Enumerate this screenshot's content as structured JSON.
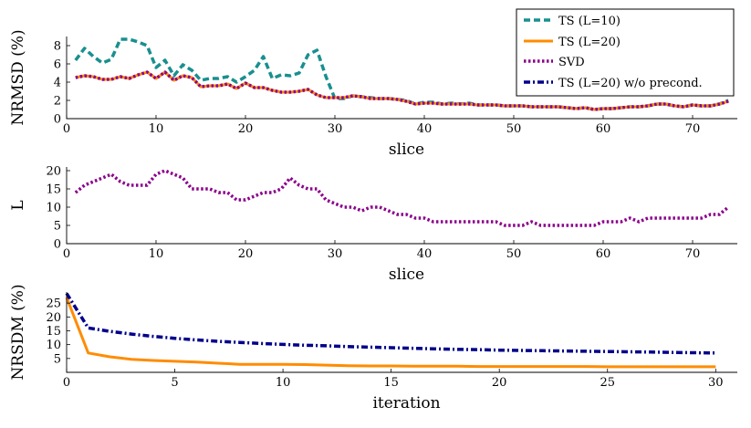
{
  "chart_data": [
    {
      "type": "line",
      "ylabel": "NRMSD (%)",
      "xlabel": "slice",
      "xlim": [
        0,
        75
      ],
      "ylim": [
        0,
        9
      ],
      "xticks": [
        0,
        10,
        20,
        30,
        40,
        50,
        60,
        70
      ],
      "yticks": [
        0,
        2,
        4,
        6,
        8
      ],
      "legend": {
        "placement": "top-right"
      },
      "series": [
        {
          "name": "TS (L=10)",
          "color": "#1a8f8f",
          "dash": "dashed",
          "x": [
            1,
            2,
            3,
            4,
            5,
            6,
            7,
            8,
            9,
            10,
            11,
            12,
            13,
            14,
            15,
            16,
            17,
            18,
            19,
            20,
            21,
            22,
            23,
            24,
            25,
            26,
            27,
            28,
            29,
            30,
            31,
            32,
            33,
            34,
            35,
            36,
            37,
            38,
            39,
            40,
            41,
            42,
            43,
            44,
            45,
            46,
            47,
            48,
            49,
            50,
            51,
            52,
            53,
            54,
            55,
            56,
            57,
            58,
            59,
            60,
            61,
            62,
            63,
            64,
            65,
            66,
            67,
            68,
            69,
            70,
            71,
            72,
            73,
            74
          ],
          "values": [
            6.4,
            7.7,
            6.8,
            6.1,
            6.5,
            8.7,
            8.7,
            8.4,
            8.0,
            5.6,
            6.4,
            4.7,
            5.9,
            5.3,
            4.2,
            4.4,
            4.4,
            4.6,
            4.0,
            4.6,
            5.3,
            6.8,
            4.4,
            4.8,
            4.7,
            5.0,
            7.0,
            7.5,
            4.6,
            2.2,
            2.2,
            2.5,
            2.4,
            2.3,
            2.2,
            2.2,
            2.1,
            2.0,
            1.6,
            1.8,
            1.8,
            1.6,
            1.7,
            1.6,
            1.7,
            1.5,
            1.5,
            1.5,
            1.4,
            1.4,
            1.4,
            1.3,
            1.3,
            1.3,
            1.3,
            1.2,
            1.1,
            1.2,
            1.0,
            1.1,
            1.1,
            1.2,
            1.3,
            1.3,
            1.4,
            1.6,
            1.6,
            1.4,
            1.3,
            1.5,
            1.4,
            1.4,
            1.6,
            2.0
          ]
        },
        {
          "name": "TS (L=20)",
          "color": "#ff8c00",
          "dash": "solid",
          "x": [
            1,
            2,
            3,
            4,
            5,
            6,
            7,
            8,
            9,
            10,
            11,
            12,
            13,
            14,
            15,
            16,
            17,
            18,
            19,
            20,
            21,
            22,
            23,
            24,
            25,
            26,
            27,
            28,
            29,
            30,
            31,
            32,
            33,
            34,
            35,
            36,
            37,
            38,
            39,
            40,
            41,
            42,
            43,
            44,
            45,
            46,
            47,
            48,
            49,
            50,
            51,
            52,
            53,
            54,
            55,
            56,
            57,
            58,
            59,
            60,
            61,
            62,
            63,
            64,
            65,
            66,
            67,
            68,
            69,
            70,
            71,
            72,
            73,
            74
          ],
          "values": [
            4.5,
            4.7,
            4.6,
            4.3,
            4.3,
            4.6,
            4.4,
            4.8,
            5.1,
            4.4,
            5.1,
            4.2,
            4.7,
            4.5,
            3.5,
            3.6,
            3.6,
            3.8,
            3.3,
            3.9,
            3.4,
            3.4,
            3.1,
            2.9,
            2.9,
            3.0,
            3.2,
            2.6,
            2.3,
            2.3,
            2.3,
            2.5,
            2.4,
            2.2,
            2.2,
            2.2,
            2.1,
            1.9,
            1.6,
            1.7,
            1.7,
            1.6,
            1.6,
            1.6,
            1.6,
            1.5,
            1.5,
            1.5,
            1.4,
            1.4,
            1.4,
            1.3,
            1.3,
            1.3,
            1.3,
            1.2,
            1.1,
            1.2,
            1.0,
            1.1,
            1.1,
            1.2,
            1.3,
            1.3,
            1.4,
            1.6,
            1.6,
            1.4,
            1.3,
            1.5,
            1.4,
            1.4,
            1.6,
            1.9
          ]
        },
        {
          "name": "SVD",
          "color": "#8b008b",
          "dash": "dotted",
          "x": [
            1,
            2,
            3,
            4,
            5,
            6,
            7,
            8,
            9,
            10,
            11,
            12,
            13,
            14,
            15,
            16,
            17,
            18,
            19,
            20,
            21,
            22,
            23,
            24,
            25,
            26,
            27,
            28,
            29,
            30,
            31,
            32,
            33,
            34,
            35,
            36,
            37,
            38,
            39,
            40,
            41,
            42,
            43,
            44,
            45,
            46,
            47,
            48,
            49,
            50,
            51,
            52,
            53,
            54,
            55,
            56,
            57,
            58,
            59,
            60,
            61,
            62,
            63,
            64,
            65,
            66,
            67,
            68,
            69,
            70,
            71,
            72,
            73,
            74
          ],
          "values": [
            4.5,
            4.7,
            4.6,
            4.3,
            4.3,
            4.6,
            4.4,
            4.8,
            5.1,
            4.4,
            5.1,
            4.2,
            4.7,
            4.5,
            3.5,
            3.6,
            3.6,
            3.8,
            3.3,
            3.9,
            3.4,
            3.4,
            3.1,
            2.9,
            2.9,
            3.0,
            3.2,
            2.6,
            2.3,
            2.3,
            2.3,
            2.5,
            2.4,
            2.2,
            2.2,
            2.2,
            2.1,
            1.9,
            1.6,
            1.7,
            1.7,
            1.6,
            1.6,
            1.6,
            1.6,
            1.5,
            1.5,
            1.5,
            1.4,
            1.4,
            1.4,
            1.3,
            1.3,
            1.3,
            1.3,
            1.2,
            1.1,
            1.2,
            1.0,
            1.1,
            1.1,
            1.2,
            1.3,
            1.3,
            1.4,
            1.6,
            1.6,
            1.4,
            1.3,
            1.5,
            1.4,
            1.4,
            1.6,
            1.9
          ]
        }
      ]
    },
    {
      "type": "line",
      "ylabel": "L",
      "xlabel": "slice",
      "xlim": [
        0,
        75
      ],
      "ylim": [
        0,
        21
      ],
      "xticks": [
        0,
        10,
        20,
        30,
        40,
        50,
        60,
        70
      ],
      "yticks": [
        0,
        5,
        10,
        15,
        20
      ],
      "series": [
        {
          "name": "SVD",
          "color": "#8b008b",
          "dash": "dotted",
          "x": [
            1,
            2,
            3,
            4,
            5,
            6,
            7,
            8,
            9,
            10,
            11,
            12,
            13,
            14,
            15,
            16,
            17,
            18,
            19,
            20,
            21,
            22,
            23,
            24,
            25,
            26,
            27,
            28,
            29,
            30,
            31,
            32,
            33,
            34,
            35,
            36,
            37,
            38,
            39,
            40,
            41,
            42,
            43,
            44,
            45,
            46,
            47,
            48,
            49,
            50,
            51,
            52,
            53,
            54,
            55,
            56,
            57,
            58,
            59,
            60,
            61,
            62,
            63,
            64,
            65,
            66,
            67,
            68,
            69,
            70,
            71,
            72,
            73,
            74
          ],
          "values": [
            14,
            16,
            17,
            18,
            19,
            17,
            16,
            16,
            16,
            19,
            20,
            19,
            18,
            15,
            15,
            15,
            14,
            14,
            12,
            12,
            13,
            14,
            14,
            15,
            18,
            16,
            15,
            15,
            12,
            11,
            10,
            10,
            9,
            10,
            10,
            9,
            8,
            8,
            7,
            7,
            6,
            6,
            6,
            6,
            6,
            6,
            6,
            6,
            5,
            5,
            5,
            6,
            5,
            5,
            5,
            5,
            5,
            5,
            5,
            6,
            6,
            6,
            7,
            6,
            7,
            7,
            7,
            7,
            7,
            7,
            7,
            8,
            8,
            10
          ]
        }
      ]
    },
    {
      "type": "line",
      "ylabel": "NRSDM (%)",
      "xlabel": "iteration",
      "xlim": [
        0,
        31
      ],
      "ylim": [
        0,
        29
      ],
      "xticks": [
        0,
        5,
        10,
        15,
        20,
        25,
        30
      ],
      "yticks": [
        5,
        10,
        15,
        20,
        25
      ],
      "series": [
        {
          "name": "TS (L=20)",
          "color": "#ff8c00",
          "dash": "solid",
          "x": [
            0,
            1,
            2,
            3,
            4,
            5,
            6,
            7,
            8,
            9,
            10,
            11,
            12,
            13,
            14,
            15,
            16,
            17,
            18,
            19,
            20,
            21,
            22,
            23,
            24,
            25,
            26,
            27,
            28,
            29,
            30
          ],
          "values": [
            27,
            7,
            5.6,
            4.7,
            4.3,
            4.0,
            3.7,
            3.3,
            2.9,
            2.9,
            2.9,
            2.8,
            2.6,
            2.4,
            2.3,
            2.3,
            2.2,
            2.2,
            2.2,
            2.1,
            2.1,
            2.1,
            2.1,
            2.1,
            2.1,
            2.0,
            2.0,
            2.0,
            2.0,
            2.0,
            2.0
          ]
        },
        {
          "name": "TS (L=20) w/o precond.",
          "color": "#00008b",
          "dash": "dashdot",
          "x": [
            0,
            1,
            2,
            3,
            4,
            5,
            6,
            7,
            8,
            9,
            10,
            11,
            12,
            13,
            14,
            15,
            16,
            17,
            18,
            19,
            20,
            21,
            22,
            23,
            24,
            25,
            26,
            27,
            28,
            29,
            30
          ],
          "values": [
            28.5,
            16,
            14.8,
            13.8,
            13,
            12.3,
            11.7,
            11.2,
            10.8,
            10.4,
            10.1,
            9.8,
            9.6,
            9.3,
            9.1,
            8.9,
            8.7,
            8.5,
            8.3,
            8.2,
            8.0,
            7.9,
            7.8,
            7.7,
            7.6,
            7.5,
            7.4,
            7.3,
            7.2,
            7.1,
            7.0
          ]
        }
      ]
    }
  ],
  "legend": [
    {
      "label": "TS (L=10)",
      "color": "#1a8f8f",
      "dash": "dashed"
    },
    {
      "label": "TS (L=20)",
      "color": "#ff8c00",
      "dash": "solid"
    },
    {
      "label": "SVD",
      "color": "#8b008b",
      "dash": "dotted"
    },
    {
      "label": "TS (L=20) w/o precond.",
      "color": "#00008b",
      "dash": "dashdot"
    }
  ]
}
